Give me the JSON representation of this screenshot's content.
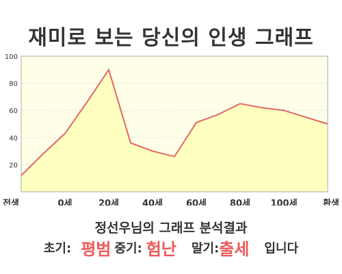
{
  "title": "재미로 보는 당신의 인생 그래프",
  "result": {
    "heading": "정선우님의 그래프 분석결과",
    "early_label": "초기:",
    "early_value": "평범",
    "middle_label": "중기:",
    "middle_value": "험난",
    "late_label": "말기:",
    "late_value": "출세",
    "suffix": "입니다"
  },
  "colors": {
    "line": "#e06666",
    "fill": "#ffffc0",
    "grid": "#dddddd",
    "highlight": "#ee5a5a"
  },
  "chart_data": {
    "type": "area",
    "x": [
      "전생",
      "",
      "0세",
      "",
      "20세",
      "",
      "40세",
      "",
      "60세",
      "",
      "80세",
      "",
      "100세",
      "",
      "환생"
    ],
    "x_tick_labels": [
      "전생",
      "0세",
      "20세",
      "40세",
      "60세",
      "80세",
      "100세",
      "환생"
    ],
    "y_ticks": [
      20,
      40,
      60,
      80,
      100
    ],
    "ylim": [
      0,
      100
    ],
    "grid": true,
    "series": [
      {
        "values": [
          12,
          28,
          43,
          66,
          90,
          36,
          30,
          26,
          51,
          57,
          65,
          62,
          60,
          55,
          50
        ]
      }
    ]
  }
}
